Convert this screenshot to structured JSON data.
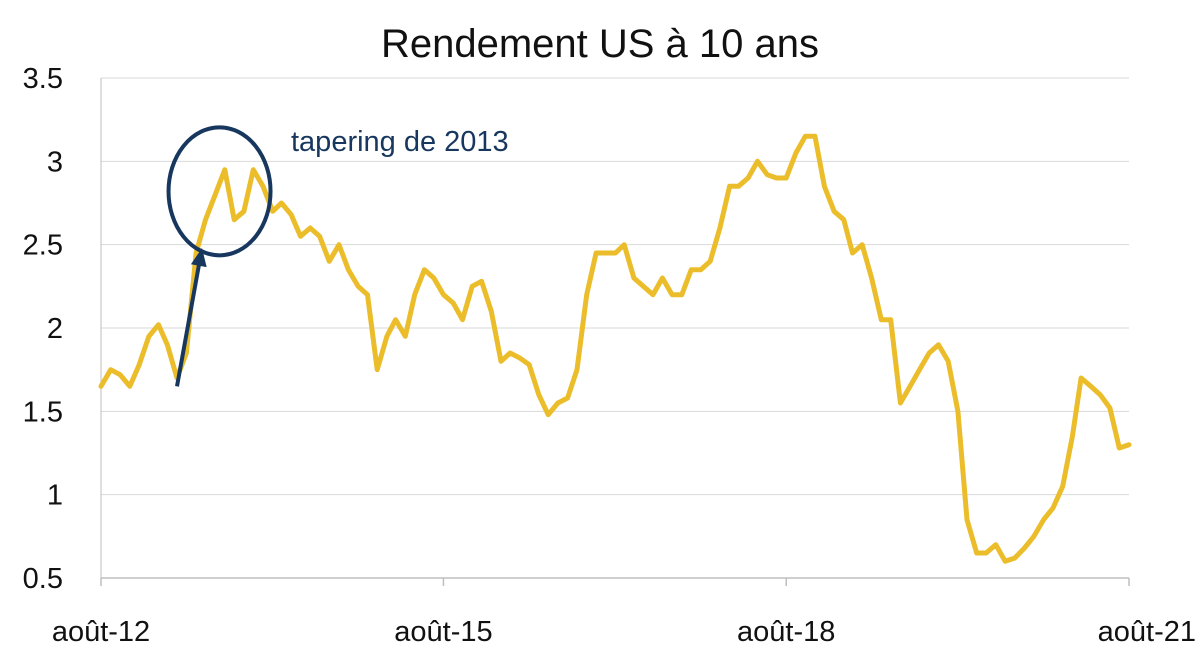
{
  "chart_data": {
    "type": "line",
    "title": "Rendement US à 10 ans",
    "xlabel": "",
    "ylabel": "",
    "ylim": [
      0.5,
      3.5
    ],
    "y_ticks": [
      "0.5",
      "1",
      "1.5",
      "2",
      "2.5",
      "3",
      "3.5"
    ],
    "x_ticks": [
      "août-12",
      "août-15",
      "août-18",
      "août-21"
    ],
    "grid": "horizontal",
    "legend": "none",
    "colors": {
      "line": "#ebbd2a",
      "annotation": "#17375e",
      "grid": "#d9d9d9",
      "axis": "#bfbfbf"
    },
    "annotation": {
      "text": "tapering de 2013",
      "from": [
        "2013-04",
        1.65
      ],
      "target": [
        "2013-08",
        2.8
      ]
    },
    "series": [
      {
        "x": [
          "2012-08",
          "2012-09",
          "2012-10",
          "2012-11",
          "2012-12",
          "2013-01",
          "2013-02",
          "2013-03",
          "2013-04",
          "2013-05",
          "2013-06",
          "2013-07",
          "2013-08",
          "2013-09",
          "2013-10",
          "2013-11",
          "2013-12",
          "2014-01",
          "2014-02",
          "2014-03",
          "2014-04",
          "2014-05",
          "2014-06",
          "2014-07",
          "2014-08",
          "2014-09",
          "2014-10",
          "2014-11",
          "2014-12",
          "2015-01",
          "2015-02",
          "2015-03",
          "2015-04",
          "2015-05",
          "2015-06",
          "2015-07",
          "2015-08",
          "2015-09",
          "2015-10",
          "2015-11",
          "2015-12",
          "2016-01",
          "2016-02",
          "2016-03",
          "2016-04",
          "2016-05",
          "2016-06",
          "2016-07",
          "2016-08",
          "2016-09",
          "2016-10",
          "2016-11",
          "2016-12",
          "2017-01",
          "2017-02",
          "2017-03",
          "2017-04",
          "2017-05",
          "2017-06",
          "2017-07",
          "2017-08",
          "2017-09",
          "2017-10",
          "2017-11",
          "2017-12",
          "2018-01",
          "2018-02",
          "2018-03",
          "2018-04",
          "2018-05",
          "2018-06",
          "2018-07",
          "2018-08",
          "2018-09",
          "2018-10",
          "2018-11",
          "2018-12",
          "2019-01",
          "2019-02",
          "2019-03",
          "2019-04",
          "2019-05",
          "2019-06",
          "2019-07",
          "2019-08",
          "2019-09",
          "2019-10",
          "2019-11",
          "2019-12",
          "2020-01",
          "2020-02",
          "2020-03",
          "2020-04",
          "2020-05",
          "2020-06",
          "2020-07",
          "2020-08",
          "2020-09",
          "2020-10",
          "2020-11",
          "2020-12",
          "2021-01",
          "2021-02",
          "2021-03",
          "2021-04",
          "2021-05",
          "2021-06",
          "2021-07",
          "2021-08"
        ],
        "values": [
          1.65,
          1.75,
          1.72,
          1.65,
          1.78,
          1.95,
          2.02,
          1.9,
          1.7,
          1.85,
          2.45,
          2.65,
          2.8,
          2.95,
          2.65,
          2.7,
          2.95,
          2.85,
          2.7,
          2.75,
          2.68,
          2.55,
          2.6,
          2.55,
          2.4,
          2.5,
          2.35,
          2.25,
          2.2,
          1.75,
          1.95,
          2.05,
          1.95,
          2.2,
          2.35,
          2.3,
          2.2,
          2.15,
          2.05,
          2.25,
          2.28,
          2.1,
          1.8,
          1.85,
          1.82,
          1.78,
          1.6,
          1.48,
          1.55,
          1.58,
          1.75,
          2.2,
          2.45,
          2.45,
          2.45,
          2.5,
          2.3,
          2.25,
          2.2,
          2.3,
          2.2,
          2.2,
          2.35,
          2.35,
          2.4,
          2.6,
          2.85,
          2.85,
          2.9,
          3.0,
          2.92,
          2.9,
          2.9,
          3.05,
          3.15,
          3.15,
          2.85,
          2.7,
          2.65,
          2.45,
          2.5,
          2.3,
          2.05,
          2.05,
          1.55,
          1.65,
          1.75,
          1.85,
          1.9,
          1.8,
          1.5,
          0.85,
          0.65,
          0.65,
          0.7,
          0.6,
          0.62,
          0.68,
          0.75,
          0.85,
          0.92,
          1.05,
          1.35,
          1.7,
          1.65,
          1.6,
          1.52,
          1.28,
          1.3
        ]
      }
    ]
  }
}
